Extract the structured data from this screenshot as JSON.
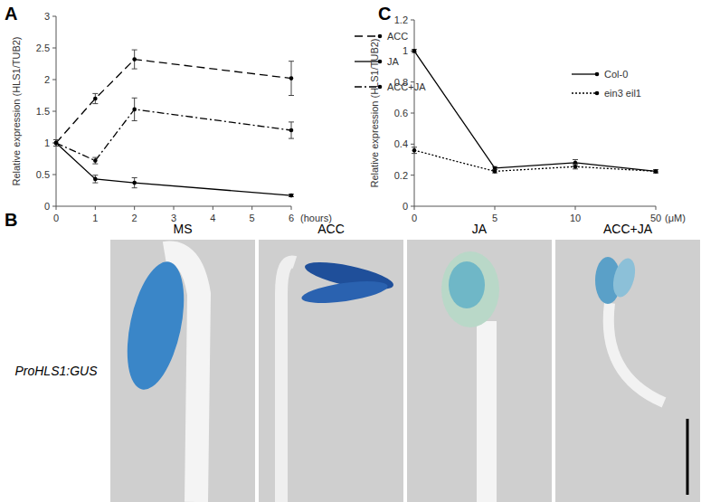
{
  "chart_data": [
    {
      "type": "line",
      "panel": "A",
      "y_label": "Relative expression (HLS1/TUB2)",
      "x_label": "(hours)",
      "x": [
        0,
        1,
        2,
        6
      ],
      "xlim": [
        0,
        6
      ],
      "xticks": [
        0,
        1,
        2,
        3,
        4,
        5,
        6
      ],
      "ylim": [
        0,
        3
      ],
      "yticks": [
        0,
        0.5,
        1,
        1.5,
        2,
        2.5,
        3
      ],
      "legend": "right",
      "series": [
        {
          "name": "ACC",
          "color": "#000000",
          "line_style": "dashed",
          "marker": "circle",
          "values": [
            1,
            1.7,
            2.32,
            2.02
          ],
          "errors": [
            0.05,
            0.08,
            0.15,
            0.27
          ]
        },
        {
          "name": "JA",
          "color": "#000000",
          "line_style": "solid",
          "marker": "circle",
          "values": [
            1,
            0.43,
            0.37,
            0.17
          ],
          "errors": [
            0.05,
            0.06,
            0.08,
            0.02
          ]
        },
        {
          "name": "ACC+JA",
          "color": "#000000",
          "line_style": "dashdot",
          "marker": "circle",
          "values": [
            1,
            0.72,
            1.53,
            1.2
          ],
          "errors": [
            0.05,
            0.05,
            0.18,
            0.13
          ]
        }
      ]
    },
    {
      "type": "line",
      "panel": "C",
      "y_label": "Relative expression (HLS1/TUB2)",
      "x_label": "(μM)",
      "categories": [
        "0",
        "5",
        "10",
        "50"
      ],
      "ylim": [
        0,
        1.2
      ],
      "yticks": [
        0,
        0.2,
        0.4,
        0.6,
        0.8,
        1,
        1.2
      ],
      "legend": "upper right",
      "series": [
        {
          "name": "Col-0",
          "color": "#000000",
          "line_style": "solid",
          "marker": "circle",
          "values": [
            1,
            0.245,
            0.28,
            0.225
          ],
          "errors": [
            0.01,
            0.01,
            0.02,
            0.01
          ]
        },
        {
          "name": "ein3 eil1",
          "color": "#000000",
          "line_style": "dotted",
          "marker": "circle",
          "values": [
            0.36,
            0.225,
            0.255,
            0.225
          ],
          "errors": [
            0.02,
            0.01,
            0.015,
            0.01
          ]
        }
      ]
    }
  ],
  "image_panel": {
    "panel": "B",
    "row_label": "ProHLS1:GUS",
    "columns": [
      "MS",
      "ACC",
      "JA",
      "ACC+JA"
    ]
  }
}
